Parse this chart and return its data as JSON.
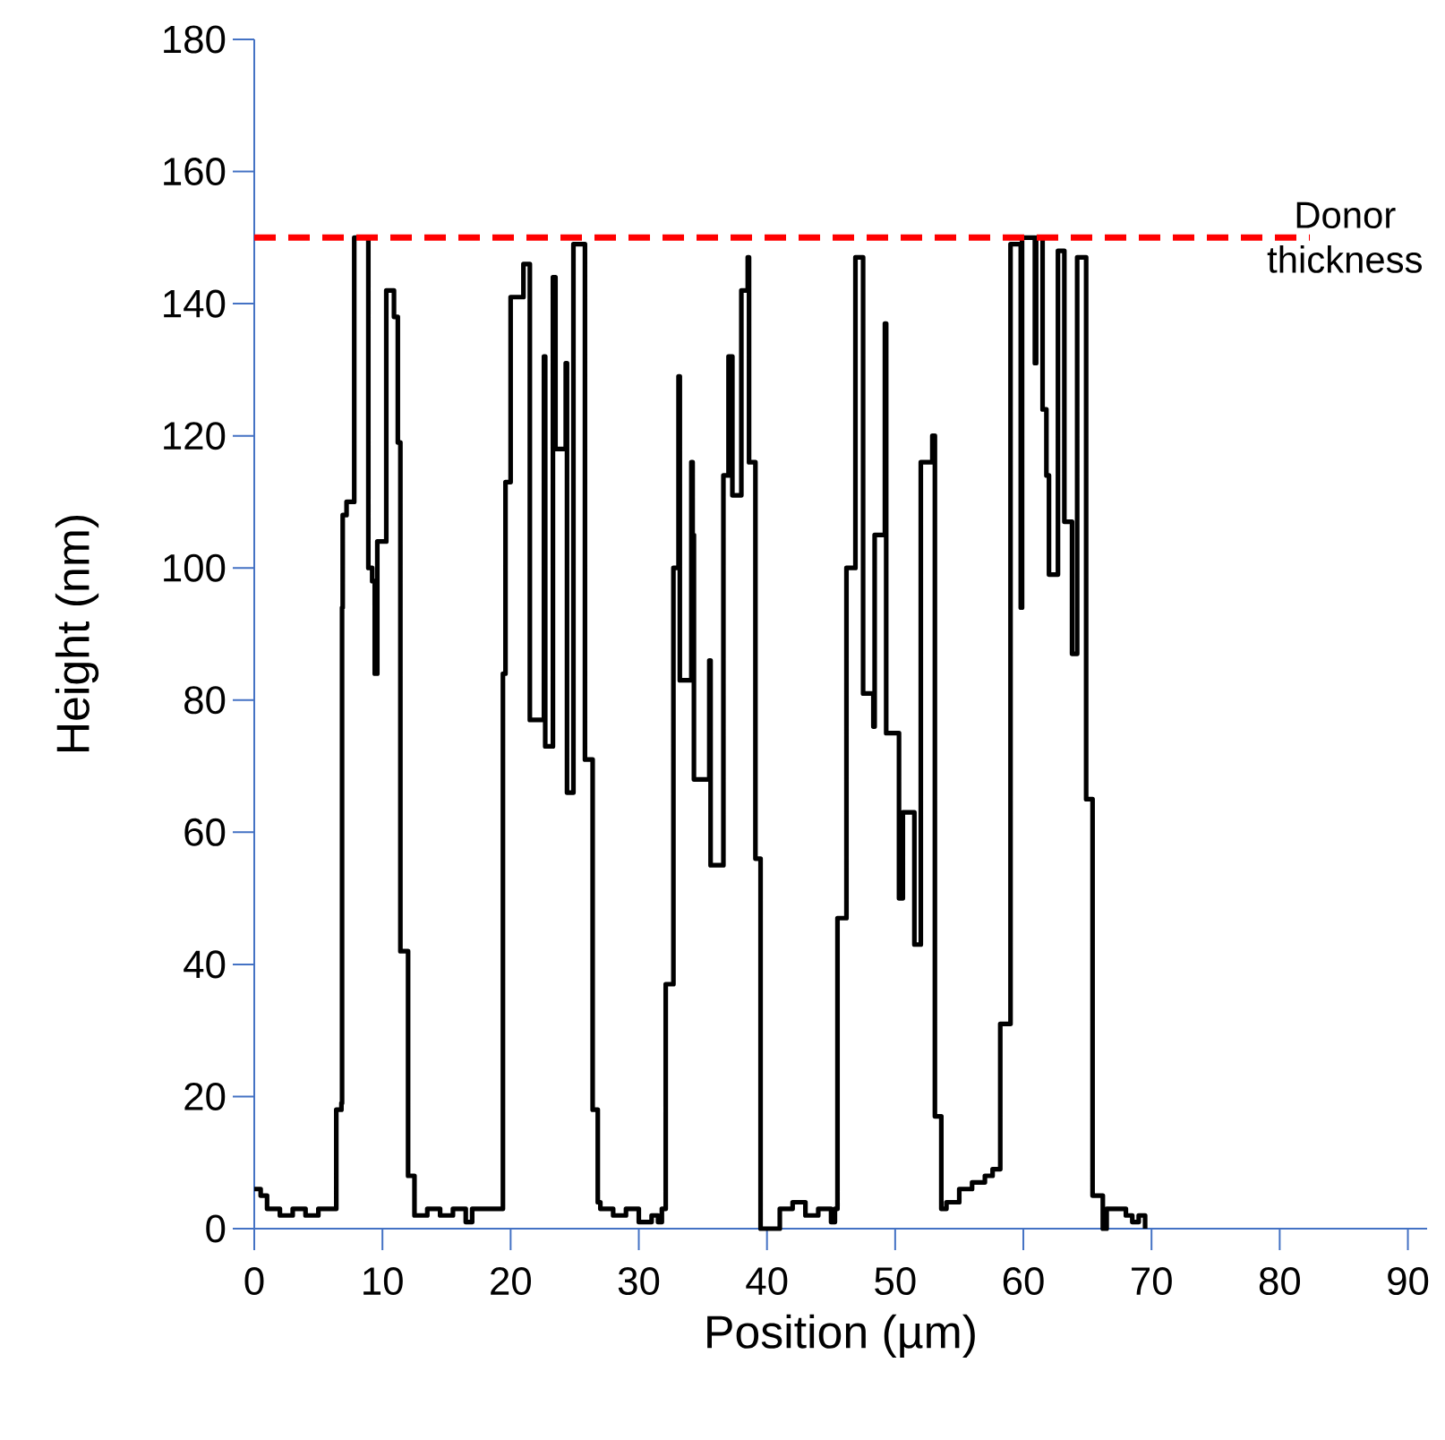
{
  "chart_data": {
    "type": "step",
    "xlabel": "Position (µm)",
    "ylabel": "Height (nm)",
    "xlim": [
      0,
      91.5
    ],
    "ylim": [
      0,
      180
    ],
    "xticks": [
      0,
      10,
      20,
      30,
      40,
      50,
      60,
      70,
      80,
      90
    ],
    "yticks": [
      0,
      20,
      40,
      60,
      80,
      100,
      120,
      140,
      160,
      180
    ],
    "grid": false,
    "marker": "none",
    "line_style": "solid",
    "series": [
      {
        "color": "#000000",
        "x": [
          0,
          0.5,
          1,
          2,
          3,
          4,
          5,
          6,
          6.3,
          6.4,
          6.8,
          6.85,
          6.9,
          7.2,
          7.8,
          8.6,
          8.9,
          9.2,
          9.4,
          9.6,
          10.3,
          10.8,
          10.9,
          11.2,
          11.4,
          12,
          12.5,
          13.5,
          14.5,
          15.5,
          16.5,
          17,
          19.2,
          19.4,
          19.6,
          20,
          21,
          21.5,
          22.6,
          22.7,
          23.3,
          23.5,
          24.3,
          24.4,
          24.9,
          25.7,
          25.8,
          26.4,
          26.8,
          27,
          28,
          29,
          30,
          31,
          31.5,
          31.8,
          32.1,
          32.7,
          33.1,
          33.2,
          34.1,
          34.2,
          34.3,
          35.5,
          35.6,
          36.6,
          37,
          37.3,
          38,
          38.5,
          38.6,
          39.1,
          39.5,
          40.5,
          41,
          42,
          43,
          44,
          45,
          45.3,
          45.4,
          45.5,
          46.2,
          46.9,
          47.5,
          48.3,
          48.4,
          49.2,
          49.3,
          50.3,
          50.6,
          51.5,
          52,
          52.9,
          53.1,
          53.6,
          54,
          55,
          56,
          57,
          57.6,
          58.2,
          58.4,
          59,
          59.8,
          59.9,
          60.9,
          61,
          61.5,
          61.8,
          62,
          62.7,
          63.2,
          63.8,
          64.2,
          64.9,
          65.4,
          66.2,
          66.5,
          67.5,
          68,
          68.5,
          69,
          69.5
        ],
        "values": [
          6,
          5,
          3,
          2,
          3,
          2,
          3,
          3,
          3,
          18,
          19,
          94,
          108,
          110,
          150,
          150,
          100,
          98,
          84,
          104,
          142,
          142,
          138,
          119,
          42,
          8,
          2,
          3,
          2,
          3,
          1,
          3,
          3,
          84,
          113,
          141,
          146,
          77,
          132,
          73,
          144,
          118,
          131,
          66,
          149,
          149,
          71,
          18,
          4,
          3,
          2,
          3,
          1,
          2,
          1,
          3,
          37,
          100,
          129,
          83,
          116,
          105,
          68,
          86,
          55,
          114,
          132,
          111,
          142,
          147,
          116,
          56,
          0,
          0,
          3,
          4,
          2,
          3,
          1,
          3,
          3,
          47,
          100,
          147,
          81,
          76,
          105,
          137,
          75,
          50,
          63,
          43,
          116,
          120,
          17,
          3,
          4,
          6,
          7,
          8,
          9,
          31,
          31,
          149,
          94,
          150,
          131,
          150,
          124,
          114,
          99,
          148,
          107,
          87,
          147,
          65,
          5,
          0,
          3,
          3,
          2,
          1,
          2,
          0
        ]
      }
    ],
    "ref_lines": [
      {
        "axis": "y",
        "value": 150,
        "label": "Donor thickness",
        "color": "#ff0000",
        "line_style": "dashed"
      }
    ]
  }
}
